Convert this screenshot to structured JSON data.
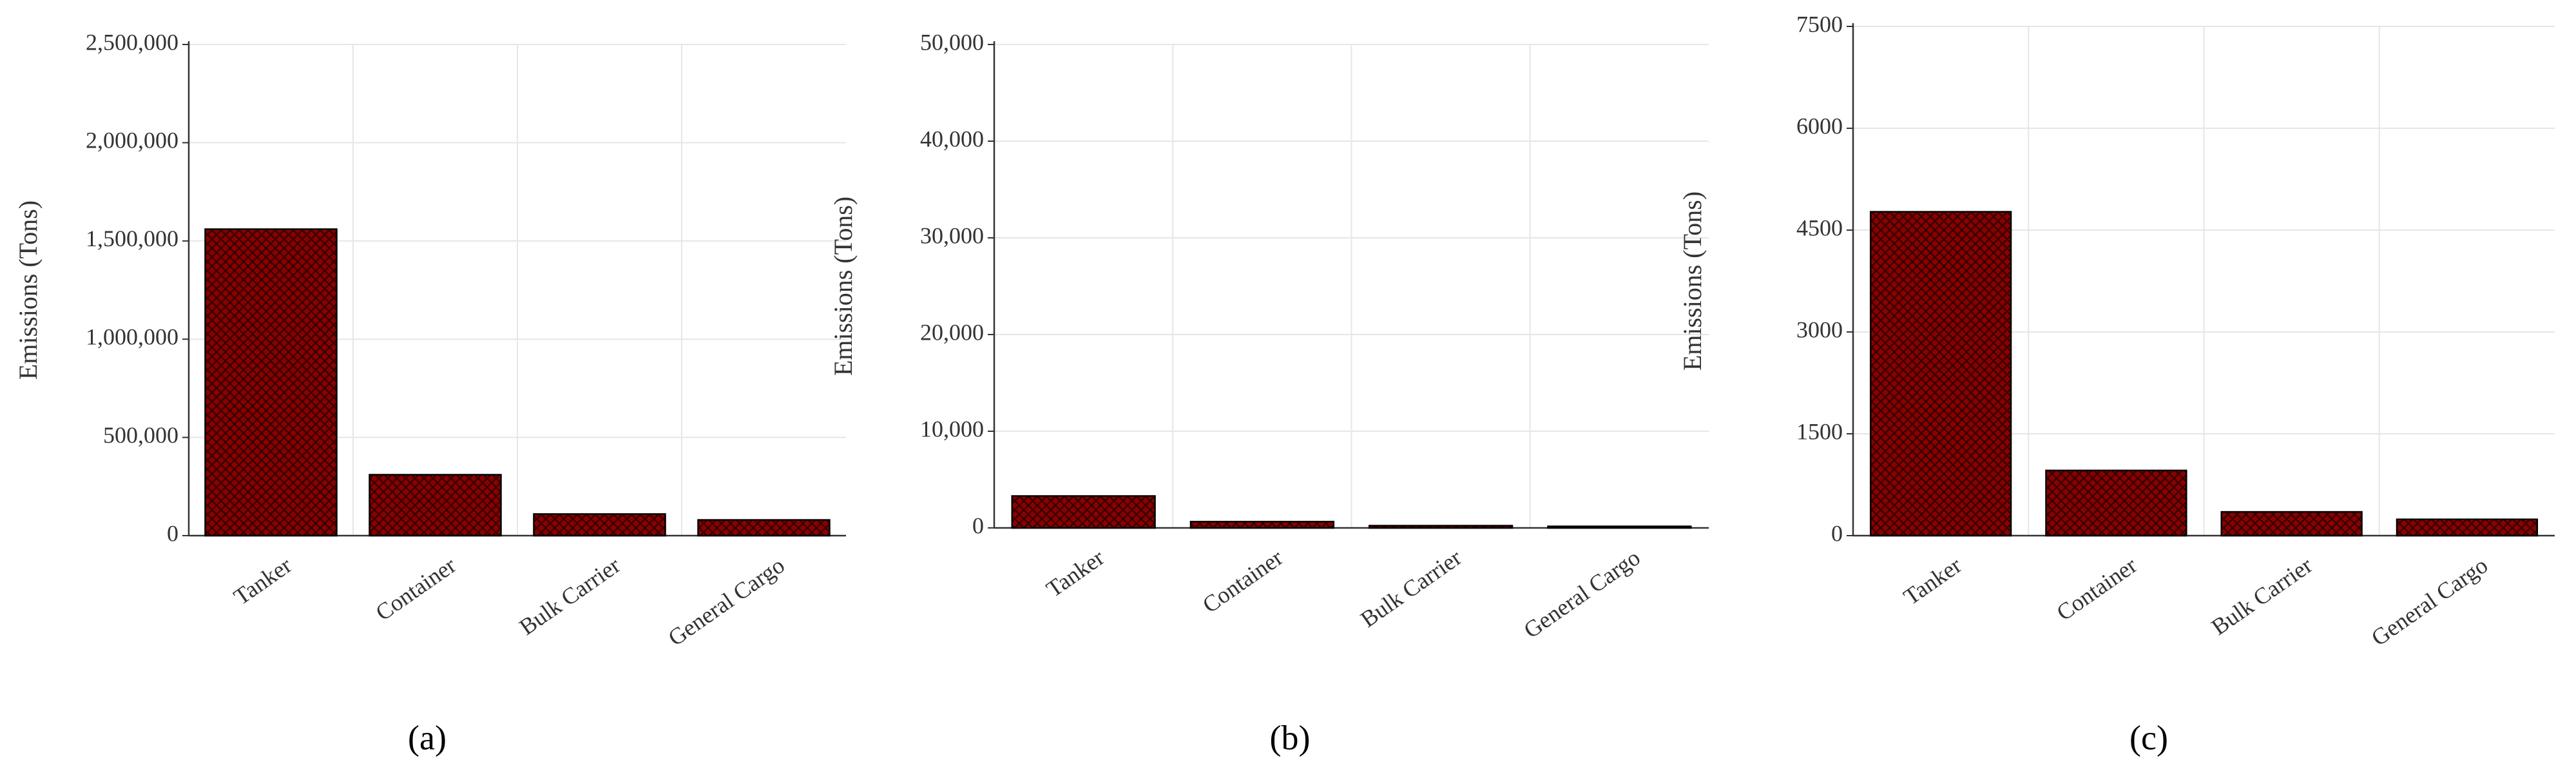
{
  "chart_data": [
    {
      "type": "bar",
      "caption": "(a)",
      "y_label": "Emissions (Tons)",
      "categories": [
        "Tanker",
        "Container",
        "Bulk Carrier",
        "General Cargo"
      ],
      "values": [
        1560000,
        310000,
        110000,
        80000
      ],
      "color": "#8b0000",
      "ylim": [
        0,
        2500000
      ],
      "yticks": [
        0,
        {
          "value": 500000,
          "label": "500,000"
        },
        {
          "value": 1000000,
          "label": "1,000,000"
        },
        {
          "value": 1500000,
          "label": "1,500,000"
        },
        {
          "value": 2000000,
          "label": "2,000,000"
        },
        {
          "value": 2500000,
          "label": "2,500,000"
        }
      ],
      "grid": true
    },
    {
      "type": "bar",
      "caption": "(b)",
      "y_label": "Emissions (Tons)",
      "categories": [
        "Tanker",
        "Container",
        "Bulk Carrier",
        "General Cargo"
      ],
      "values": [
        3300,
        650,
        230,
        160
      ],
      "color": "#8b0000",
      "ylim": [
        0,
        50000
      ],
      "yticks": [
        0,
        {
          "value": 10000,
          "label": "10,000"
        },
        {
          "value": 20000,
          "label": "20,000"
        },
        {
          "value": 30000,
          "label": "30,000"
        },
        {
          "value": 40000,
          "label": "40,000"
        },
        {
          "value": 50000,
          "label": "50,000"
        }
      ],
      "grid": true
    },
    {
      "type": "bar",
      "caption": "(c)",
      "y_label": "Emissions (Tons)",
      "categories": [
        "Tanker",
        "Container",
        "Bulk Carrier",
        "General Cargo"
      ],
      "values": [
        4770,
        960,
        350,
        240
      ],
      "color": "#8b0000",
      "ylim": [
        0,
        7500
      ],
      "yticks": [
        0,
        1500,
        3000,
        4500,
        6000,
        7500
      ],
      "grid": true
    }
  ]
}
